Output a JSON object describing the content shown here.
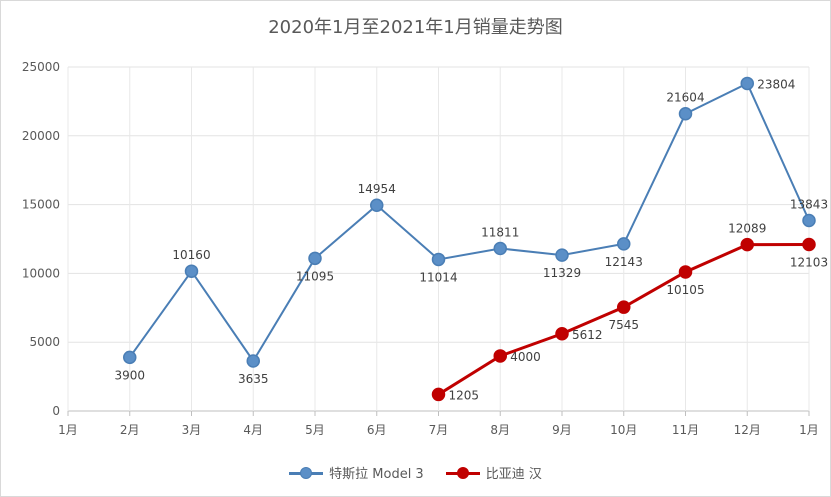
{
  "chart_data": {
    "type": "line",
    "title": "2020年1月至2021年1月销量走势图",
    "categories": [
      "1月",
      "2月",
      "3月",
      "4月",
      "5月",
      "6月",
      "7月",
      "8月",
      "9月",
      "10月",
      "11月",
      "12月",
      "1月"
    ],
    "ylim": [
      0,
      25000
    ],
    "yticks": [
      0,
      5000,
      10000,
      15000,
      20000,
      25000
    ],
    "grid": true,
    "legend_position": "bottom",
    "series": [
      {
        "name": "特斯拉 Model 3",
        "color": "#5b8fc7",
        "stroke": "#4a7eb5",
        "values": [
          null,
          3900,
          10160,
          3635,
          11095,
          14954,
          11014,
          11811,
          11329,
          12143,
          21604,
          23804,
          13843
        ],
        "label_pos": [
          null,
          "below",
          "above",
          "below",
          "below",
          "above",
          "below",
          "above",
          "below",
          "below",
          "above",
          "right",
          "above"
        ]
      },
      {
        "name": "比亚迪 汉",
        "color": "#c00000",
        "stroke": "#c00000",
        "values": [
          null,
          null,
          null,
          null,
          null,
          null,
          1205,
          4000,
          5612,
          7545,
          10105,
          12089,
          12103
        ],
        "label_pos": [
          null,
          null,
          null,
          null,
          null,
          null,
          "right",
          "right",
          "right",
          "below",
          "below",
          "above",
          "below"
        ]
      }
    ]
  }
}
